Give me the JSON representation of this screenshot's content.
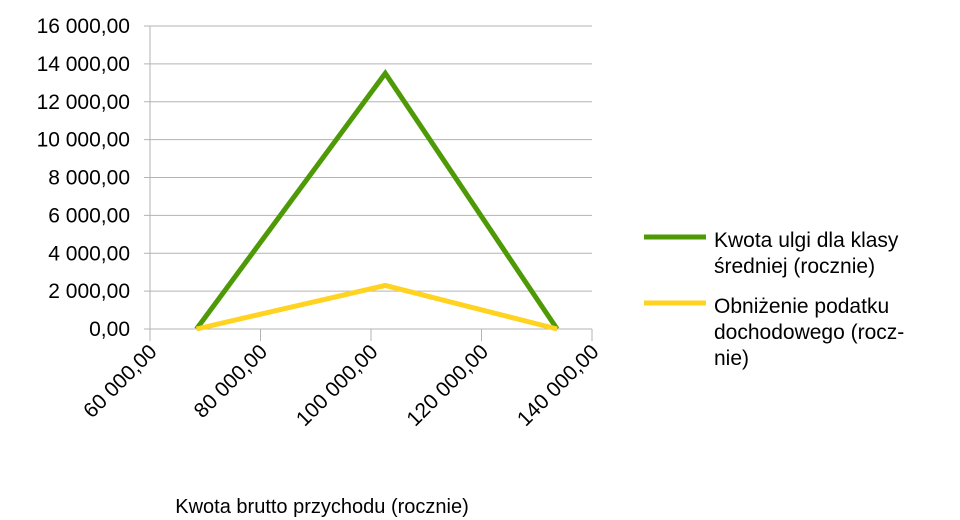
{
  "chart_data": {
    "type": "line",
    "xlabel": "Kwota brutto przychodu (rocznie)",
    "ylabel": "",
    "xlim": [
      60000,
      140000
    ],
    "ylim": [
      0,
      16000
    ],
    "x_ticks": [
      60000,
      80000,
      100000,
      120000,
      140000
    ],
    "y_ticks": [
      0,
      2000,
      4000,
      6000,
      8000,
      10000,
      12000,
      14000,
      16000
    ],
    "x_tick_labels": [
      "60 000,00",
      "80 000,00",
      "100 000,00",
      "120 000,00",
      "140 000,00"
    ],
    "y_tick_labels": [
      "0,00",
      "2 000,00",
      "4 000,00",
      "6 000,00",
      "8 000,00",
      "10 000,00",
      "12 000,00",
      "14 000,00",
      "16 000,00"
    ],
    "grid": "horizontal",
    "legend_position": "right",
    "series": [
      {
        "name_lines": [
          " Kwota ulgi dla klasy",
          "średniej (rocznie)"
        ],
        "color": "#4e9a06",
        "x": [
          68412,
          102588,
          133692
        ],
        "y": [
          0,
          13500,
          0
        ]
      },
      {
        "name_lines": [
          "Obniżenie podatku",
          "dochodowego (rocz-",
          "nie)"
        ],
        "color": "#ffd320",
        "x": [
          68412,
          102588,
          133692
        ],
        "y": [
          0,
          2300,
          0
        ]
      }
    ]
  }
}
